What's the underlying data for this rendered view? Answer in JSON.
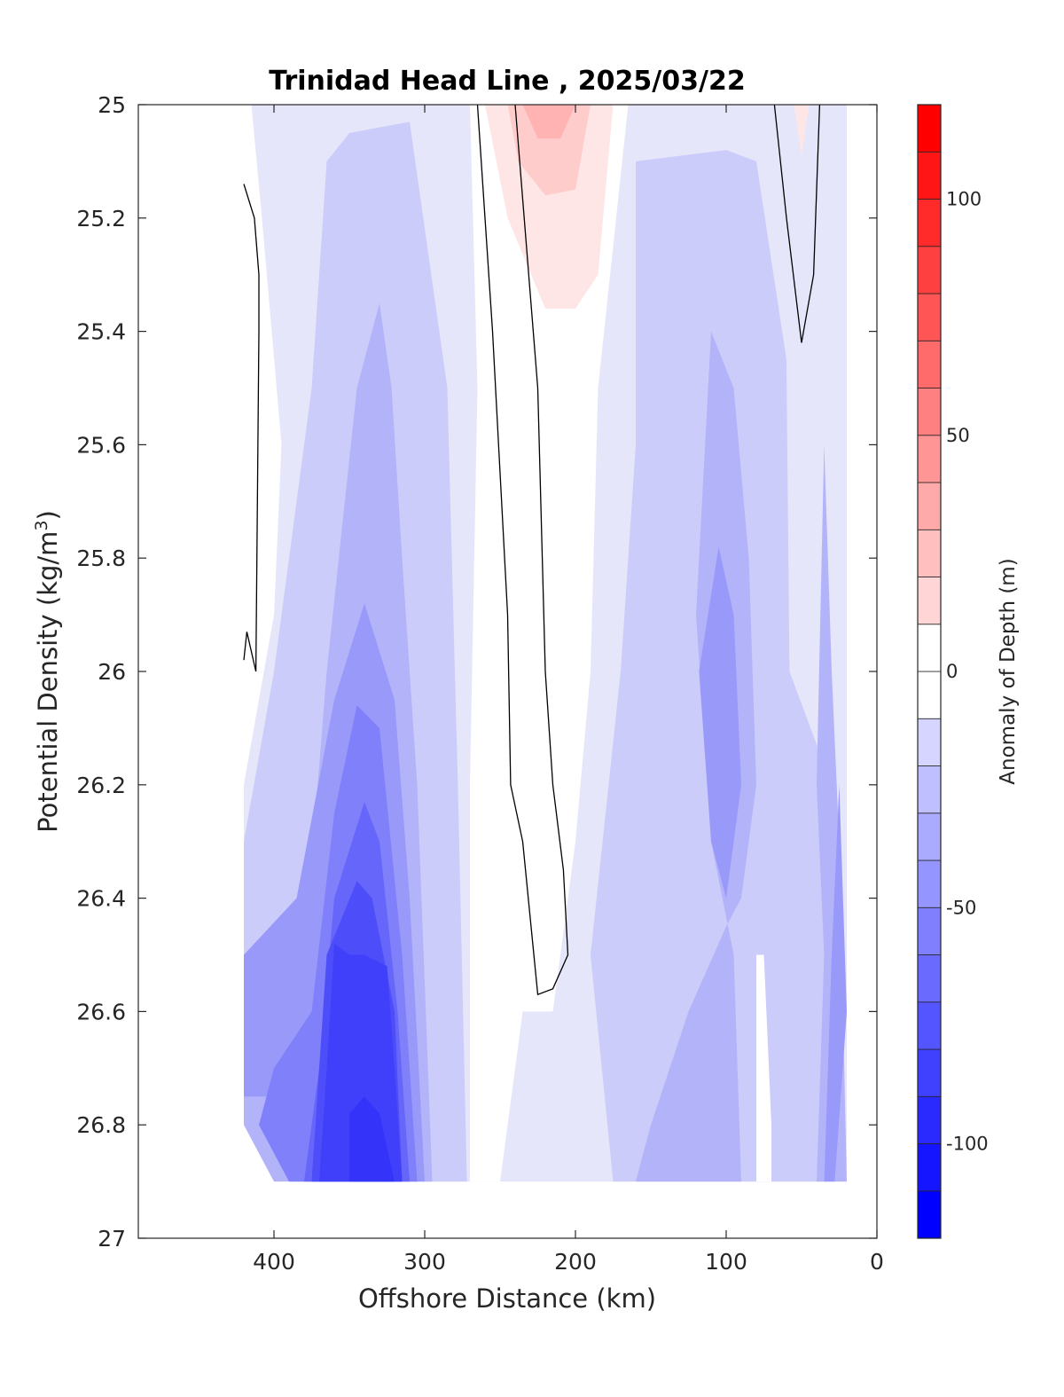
{
  "chart_data": {
    "type": "contour",
    "title": "Trinidad Head Line , 2025/03/22",
    "xlabel": "Offshore Distance (km)",
    "ylabel": "Potential Density (kg/m",
    "ylabel_sup": "3",
    "ylabel_close": ")",
    "xlim": [
      490,
      0
    ],
    "ylim": [
      25,
      27
    ],
    "x_reversed": true,
    "y_reversed": true,
    "xticks": [
      400,
      300,
      200,
      100,
      0
    ],
    "xtick_labels": [
      "400",
      "300",
      "200",
      "100",
      "0"
    ],
    "yticks": [
      25,
      25.2,
      25.4,
      25.6,
      25.8,
      26,
      26.2,
      26.4,
      26.6,
      26.8,
      27
    ],
    "ytick_labels": [
      "25",
      "25.2",
      "25.4",
      "25.6",
      "25.8",
      "26",
      "26.2",
      "26.4",
      "26.6",
      "26.8",
      "27"
    ],
    "grid": false,
    "colorbar": {
      "label": "Anomaly of Depth (m)",
      "range": [
        -120,
        120
      ],
      "step": 10,
      "ticks": [
        100,
        50,
        0,
        -50,
        -100
      ],
      "tick_labels": [
        "100",
        "50",
        "0",
        "-50",
        "-100"
      ]
    },
    "data_extent": {
      "x_max": 420,
      "x_min": 20,
      "sigma_max": 26.9
    },
    "contour_regions": [
      {
        "level": -10,
        "color": "#e6e6fa",
        "points": [
          [
            415,
            25
          ],
          [
            20,
            25
          ],
          [
            20,
            26.9
          ],
          [
            380,
            26.9
          ],
          [
            400,
            26.8
          ],
          [
            420,
            26.8
          ],
          [
            420,
            26.2
          ],
          [
            400,
            25.9
          ],
          [
            395,
            25.6
          ],
          [
            408,
            25.2
          ]
        ]
      },
      {
        "level": -20,
        "color": "#ccccfa",
        "points": [
          [
            350,
            25.05
          ],
          [
            310,
            25.03
          ],
          [
            285,
            25.5
          ],
          [
            278,
            26.2
          ],
          [
            272,
            26.9
          ],
          [
            390,
            26.9
          ],
          [
            410,
            26.8
          ],
          [
            420,
            26.8
          ],
          [
            420,
            26.3
          ],
          [
            400,
            26.0
          ],
          [
            375,
            25.5
          ],
          [
            365,
            25.1
          ]
        ]
      },
      {
        "level": -20,
        "color": "#ccccfa",
        "points": [
          [
            160,
            25.1
          ],
          [
            100,
            25.08
          ],
          [
            80,
            25.1
          ],
          [
            60,
            25.45
          ],
          [
            58,
            26.0
          ],
          [
            30,
            26.2
          ],
          [
            25,
            26.9
          ],
          [
            175,
            26.9
          ],
          [
            190,
            26.5
          ],
          [
            170,
            26.0
          ],
          [
            160,
            25.6
          ]
        ]
      },
      {
        "level": -30,
        "color": "#b3b3fa",
        "points": [
          [
            330,
            25.35
          ],
          [
            345,
            25.5
          ],
          [
            365,
            26.0
          ],
          [
            380,
            26.5
          ],
          [
            420,
            26.6
          ],
          [
            420,
            26.8
          ],
          [
            400,
            26.9
          ],
          [
            295,
            26.9
          ],
          [
            305,
            26.2
          ],
          [
            315,
            25.8
          ],
          [
            322,
            25.5
          ]
        ]
      },
      {
        "level": -30,
        "color": "#b3b3fa",
        "points": [
          [
            110,
            25.4
          ],
          [
            95,
            25.5
          ],
          [
            85,
            25.8
          ],
          [
            80,
            26.2
          ],
          [
            90,
            26.4
          ],
          [
            100,
            26.45
          ],
          [
            125,
            26.6
          ],
          [
            150,
            26.8
          ],
          [
            160,
            26.9
          ],
          [
            90,
            26.9
          ],
          [
            95,
            26.5
          ],
          [
            110,
            26.3
          ],
          [
            120,
            25.9
          ]
        ]
      },
      {
        "level": -40,
        "color": "#9999fa",
        "points": [
          [
            340,
            25.88
          ],
          [
            360,
            26.05
          ],
          [
            385,
            26.4
          ],
          [
            420,
            26.5
          ],
          [
            420,
            26.75
          ],
          [
            395,
            26.75
          ],
          [
            375,
            26.9
          ],
          [
            300,
            26.9
          ],
          [
            310,
            26.4
          ],
          [
            320,
            26.05
          ]
        ]
      },
      {
        "level": -40,
        "color": "#9999fa",
        "points": [
          [
            105,
            25.78
          ],
          [
            95,
            25.9
          ],
          [
            90,
            26.2
          ],
          [
            100,
            26.4
          ],
          [
            110,
            26.3
          ],
          [
            118,
            26.0
          ]
        ]
      },
      {
        "level": -50,
        "color": "#8080fa",
        "points": [
          [
            345,
            26.06
          ],
          [
            360,
            26.25
          ],
          [
            375,
            26.6
          ],
          [
            400,
            26.7
          ],
          [
            410,
            26.8
          ],
          [
            390,
            26.9
          ],
          [
            305,
            26.9
          ],
          [
            315,
            26.5
          ],
          [
            330,
            26.1
          ]
        ]
      },
      {
        "level": -60,
        "color": "#6666fa",
        "points": [
          [
            340,
            26.23
          ],
          [
            360,
            26.4
          ],
          [
            370,
            26.7
          ],
          [
            380,
            26.9
          ],
          [
            310,
            26.9
          ],
          [
            318,
            26.6
          ],
          [
            330,
            26.3
          ]
        ]
      },
      {
        "level": -70,
        "color": "#4d4dfa",
        "points": [
          [
            345,
            26.37
          ],
          [
            365,
            26.5
          ],
          [
            370,
            26.7
          ],
          [
            375,
            26.9
          ],
          [
            315,
            26.9
          ],
          [
            320,
            26.6
          ],
          [
            335,
            26.4
          ]
        ]
      },
      {
        "level": -80,
        "color": "#4040fa",
        "points": [
          [
            360,
            26.48
          ],
          [
            350,
            26.5
          ],
          [
            340,
            26.5
          ],
          [
            325,
            26.52
          ],
          [
            320,
            26.7
          ],
          [
            315,
            26.9
          ],
          [
            370,
            26.9
          ],
          [
            365,
            26.7
          ]
        ]
      },
      {
        "level": -90,
        "color": "#3333fa",
        "points": [
          [
            350,
            26.78
          ],
          [
            340,
            26.75
          ],
          [
            330,
            26.78
          ],
          [
            320,
            26.9
          ],
          [
            350,
            26.9
          ]
        ]
      },
      {
        "level": -30,
        "color": "#b3b3fa",
        "points": [
          [
            35,
            25.6
          ],
          [
            30,
            26.0
          ],
          [
            25,
            26.3
          ],
          [
            20,
            26.9
          ],
          [
            40,
            26.9
          ],
          [
            35,
            26.5
          ],
          [
            40,
            26.2
          ]
        ]
      },
      {
        "level": -40,
        "color": "#9999fa",
        "points": [
          [
            25,
            26.2
          ],
          [
            20,
            26.6
          ],
          [
            28,
            26.9
          ],
          [
            35,
            26.9
          ],
          [
            30,
            26.5
          ]
        ]
      },
      {
        "level": 0,
        "color": "#ffffff",
        "points": [
          [
            270,
            25
          ],
          [
            165,
            25
          ],
          [
            185,
            25.5
          ],
          [
            190,
            26.0
          ],
          [
            200,
            26.3
          ],
          [
            215,
            26.6
          ],
          [
            235,
            26.6
          ],
          [
            250,
            26.9
          ],
          [
            270,
            26.9
          ],
          [
            270,
            26.2
          ],
          [
            265,
            25.5
          ]
        ]
      },
      {
        "level": 0,
        "color": "#ffffff",
        "points": [
          [
            80,
            26.5
          ],
          [
            75,
            26.5
          ],
          [
            70,
            26.8
          ],
          [
            70,
            26.9
          ],
          [
            80,
            26.9
          ]
        ]
      },
      {
        "level": 10,
        "color": "#ffe6e6",
        "points": [
          [
            260,
            25
          ],
          [
            175,
            25
          ],
          [
            185,
            25.3
          ],
          [
            200,
            25.36
          ],
          [
            220,
            25.36
          ],
          [
            245,
            25.2
          ]
        ]
      },
      {
        "level": 20,
        "color": "#ffcccc",
        "points": [
          [
            245,
            25
          ],
          [
            190,
            25
          ],
          [
            200,
            25.15
          ],
          [
            220,
            25.16
          ],
          [
            238,
            25.1
          ]
        ]
      },
      {
        "level": 30,
        "color": "#ffb3b3",
        "points": [
          [
            235,
            25
          ],
          [
            200,
            25
          ],
          [
            210,
            25.06
          ],
          [
            225,
            25.06
          ]
        ]
      },
      {
        "level": 10,
        "color": "#ffe6e6",
        "points": [
          [
            55,
            25
          ],
          [
            45,
            25
          ],
          [
            50,
            25.09
          ]
        ]
      }
    ],
    "zero_contours": [
      [
        [
          420,
          25.14
        ],
        [
          413,
          25.2
        ],
        [
          410,
          25.3
        ],
        [
          410,
          25.4
        ],
        [
          412,
          26.0
        ],
        [
          418,
          25.93
        ],
        [
          420,
          25.98
        ]
      ],
      [
        [
          265,
          25
        ],
        [
          255,
          25.4
        ],
        [
          245,
          25.9
        ],
        [
          243,
          26.2
        ],
        [
          235,
          26.3
        ],
        [
          225,
          26.57
        ],
        [
          215,
          26.56
        ],
        [
          205,
          26.5
        ],
        [
          208,
          26.35
        ],
        [
          215,
          26.2
        ],
        [
          220,
          26.0
        ],
        [
          225,
          25.5
        ],
        [
          240,
          25.0
        ]
      ],
      [
        [
          68,
          25
        ],
        [
          60,
          25.2
        ],
        [
          50,
          25.42
        ],
        [
          42,
          25.3
        ],
        [
          38,
          25
        ]
      ]
    ]
  }
}
